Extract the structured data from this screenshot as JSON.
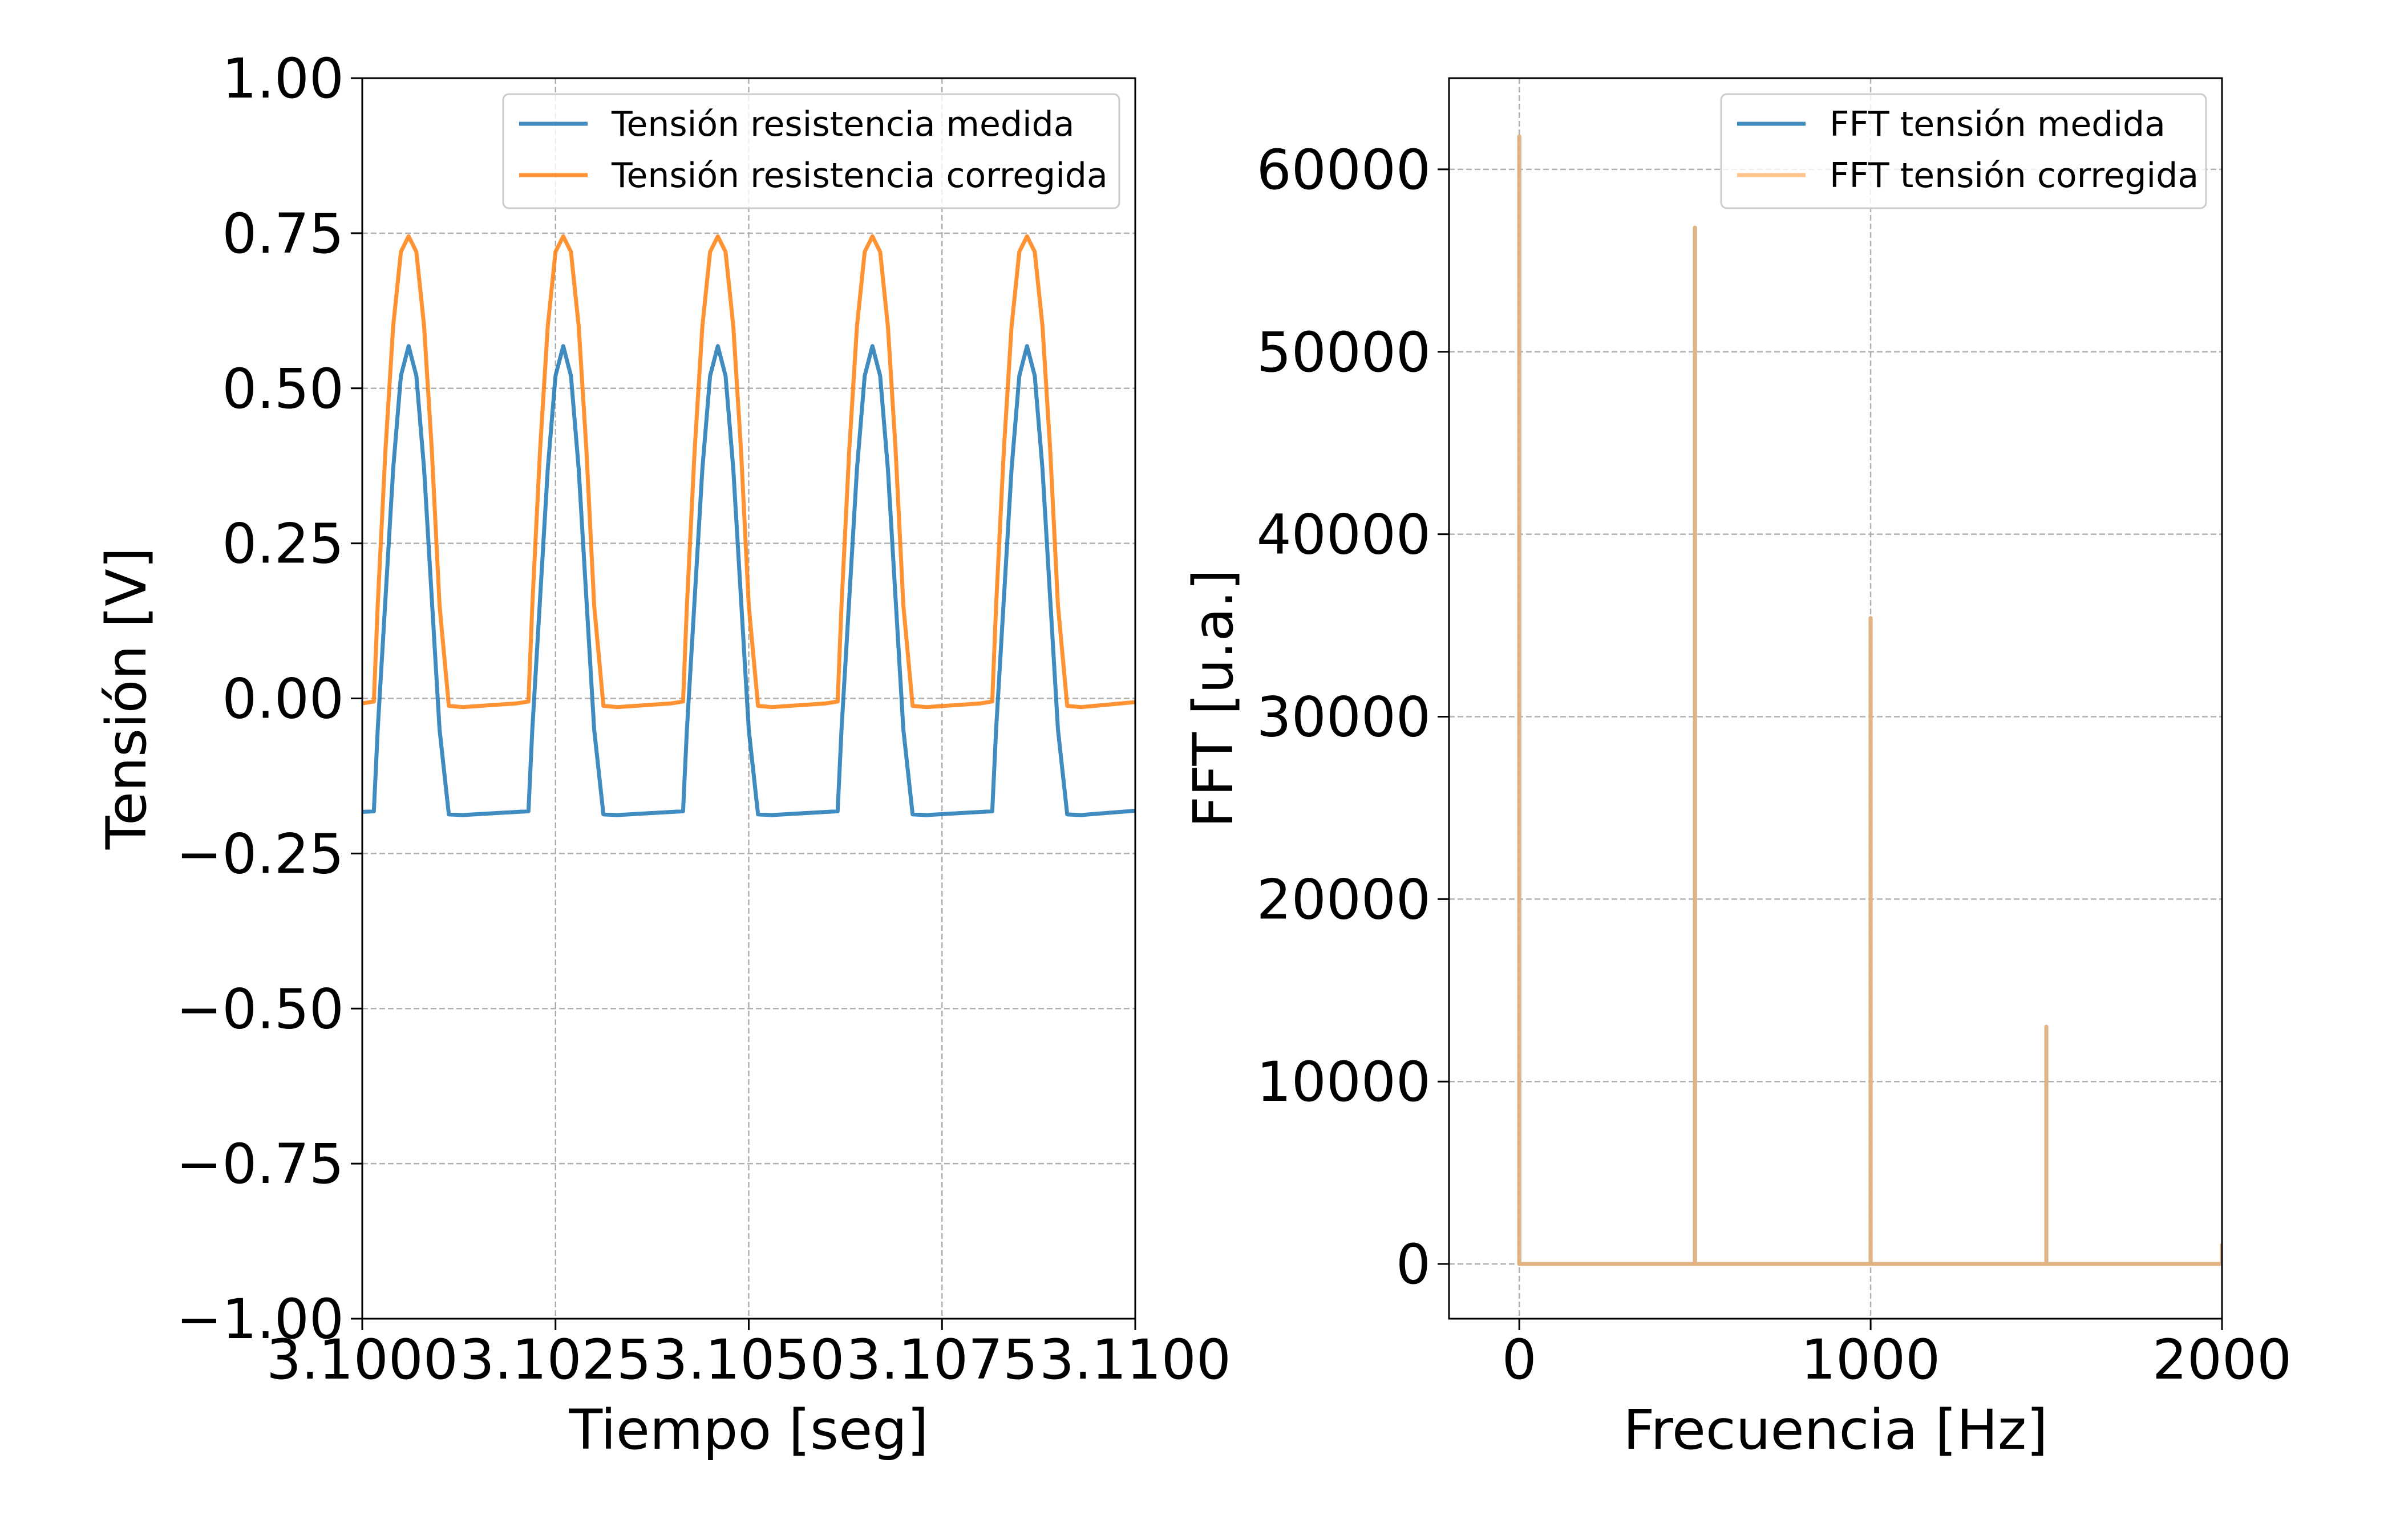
{
  "chart_data": [
    {
      "type": "line",
      "xlabel": "Tiempo [seg]",
      "ylabel": "Tensión [V]",
      "xlim": [
        3.1,
        3.11
      ],
      "ylim": [
        -1.0,
        1.0
      ],
      "x_ticks": [
        3.1,
        3.1025,
        3.105,
        3.1075,
        3.11
      ],
      "x_tick_labels": [
        "3.1000",
        "3.1025",
        "3.1050",
        "3.1075",
        "3.1100"
      ],
      "y_ticks": [
        -1.0,
        -0.75,
        -0.5,
        -0.25,
        0.0,
        0.25,
        0.5,
        0.75,
        1.0
      ],
      "y_tick_labels": [
        "−1.00",
        "−0.75",
        "−0.50",
        "−0.25",
        "0.00",
        "0.25",
        "0.50",
        "0.75",
        "1.00"
      ],
      "grid": true,
      "legend_position": "top-right",
      "period": 0.002,
      "series": [
        {
          "name": "Tensión resistencia medida",
          "color": "#1f77b4",
          "x": [
            3.1,
            3.10015,
            3.1002,
            3.1003,
            3.1004,
            3.1005,
            3.1006,
            3.1007,
            3.1008,
            3.1009,
            3.101,
            3.10112,
            3.1013,
            3.102,
            3.10215,
            3.1022,
            3.1023,
            3.1024,
            3.1025,
            3.1026,
            3.1027,
            3.1028,
            3.1029,
            3.103,
            3.10312,
            3.1033,
            3.104,
            3.10415,
            3.1042,
            3.1043,
            3.1044,
            3.1045,
            3.1046,
            3.1047,
            3.1048,
            3.1049,
            3.105,
            3.10512,
            3.1053,
            3.106,
            3.10615,
            3.1062,
            3.1063,
            3.1064,
            3.1065,
            3.1066,
            3.1067,
            3.1068,
            3.1069,
            3.107,
            3.10712,
            3.1073,
            3.108,
            3.10815,
            3.1082,
            3.1083,
            3.1084,
            3.1085,
            3.1086,
            3.1087,
            3.1088,
            3.1089,
            3.109,
            3.10912,
            3.1093,
            3.11
          ],
          "y": [
            -0.183,
            -0.182,
            -0.05,
            0.16,
            0.37,
            0.52,
            0.568,
            0.52,
            0.37,
            0.16,
            -0.05,
            -0.187,
            -0.188,
            -0.183,
            -0.182,
            -0.05,
            0.16,
            0.37,
            0.52,
            0.568,
            0.52,
            0.37,
            0.16,
            -0.05,
            -0.187,
            -0.188,
            -0.183,
            -0.182,
            -0.05,
            0.16,
            0.37,
            0.52,
            0.568,
            0.52,
            0.37,
            0.16,
            -0.05,
            -0.187,
            -0.188,
            -0.183,
            -0.182,
            -0.05,
            0.16,
            0.37,
            0.52,
            0.568,
            0.52,
            0.37,
            0.16,
            -0.05,
            -0.187,
            -0.188,
            -0.183,
            -0.182,
            -0.05,
            0.16,
            0.37,
            0.52,
            0.568,
            0.52,
            0.37,
            0.16,
            -0.05,
            -0.187,
            -0.188,
            -0.181
          ]
        },
        {
          "name": "Tensión resistencia corregida",
          "color": "#ff7f0e",
          "x": [
            3.1,
            3.10015,
            3.1002,
            3.1003,
            3.1004,
            3.1005,
            3.1006,
            3.1007,
            3.1008,
            3.1009,
            3.101,
            3.10112,
            3.1013,
            3.102,
            3.10215,
            3.1022,
            3.1023,
            3.1024,
            3.1025,
            3.1026,
            3.1027,
            3.1028,
            3.1029,
            3.103,
            3.10312,
            3.1033,
            3.104,
            3.10415,
            3.1042,
            3.1043,
            3.1044,
            3.1045,
            3.1046,
            3.1047,
            3.1048,
            3.1049,
            3.105,
            3.10512,
            3.1053,
            3.106,
            3.10615,
            3.1062,
            3.1063,
            3.1064,
            3.1065,
            3.1066,
            3.1067,
            3.1068,
            3.1069,
            3.107,
            3.10712,
            3.1073,
            3.108,
            3.10815,
            3.1082,
            3.1083,
            3.1084,
            3.1085,
            3.1086,
            3.1087,
            3.1088,
            3.1089,
            3.109,
            3.10912,
            3.1093,
            3.11
          ],
          "y": [
            -0.008,
            -0.005,
            0.15,
            0.4,
            0.6,
            0.72,
            0.745,
            0.72,
            0.6,
            0.4,
            0.15,
            -0.012,
            -0.014,
            -0.008,
            -0.005,
            0.15,
            0.4,
            0.6,
            0.72,
            0.745,
            0.72,
            0.6,
            0.4,
            0.15,
            -0.012,
            -0.014,
            -0.008,
            -0.005,
            0.15,
            0.4,
            0.6,
            0.72,
            0.745,
            0.72,
            0.6,
            0.4,
            0.15,
            -0.012,
            -0.014,
            -0.008,
            -0.005,
            0.15,
            0.4,
            0.6,
            0.72,
            0.745,
            0.72,
            0.6,
            0.4,
            0.15,
            -0.012,
            -0.014,
            -0.008,
            -0.005,
            0.15,
            0.4,
            0.6,
            0.72,
            0.745,
            0.72,
            0.6,
            0.4,
            0.15,
            -0.012,
            -0.014,
            -0.006
          ]
        }
      ]
    },
    {
      "type": "line",
      "xlabel": "Frecuencia [Hz]",
      "ylabel": "FFT [u.a.]",
      "xlim": [
        -200,
        2000
      ],
      "ylim": [
        -3000,
        65000
      ],
      "x_ticks": [
        0,
        1000,
        2000
      ],
      "x_tick_labels": [
        "0",
        "1000",
        "2000"
      ],
      "y_ticks": [
        0,
        10000,
        20000,
        30000,
        40000,
        50000,
        60000
      ],
      "y_tick_labels": [
        "0",
        "10000",
        "20000",
        "30000",
        "40000",
        "50000",
        "60000"
      ],
      "grid": true,
      "legend_position": "top-right",
      "series": [
        {
          "name": "FFT tensión medida",
          "color": "#1f77b4",
          "x": [
            0,
            0,
            0,
            500,
            500,
            500,
            1000,
            1000,
            1000,
            1500,
            1500,
            1500,
            2000,
            2000
          ],
          "y": [
            0,
            61800,
            0,
            0,
            56800,
            0,
            0,
            35400,
            0,
            0,
            13000,
            0,
            0,
            1100
          ]
        },
        {
          "name": "FFT tensión corregida",
          "color": "#ffbb78",
          "x": [
            0,
            0,
            0,
            500,
            500,
            500,
            1000,
            1000,
            1000,
            1500,
            1500,
            1500,
            2000,
            2000
          ],
          "y": [
            0,
            61800,
            0,
            0,
            56800,
            0,
            0,
            35400,
            0,
            0,
            13000,
            0,
            0,
            1100
          ]
        }
      ]
    }
  ]
}
